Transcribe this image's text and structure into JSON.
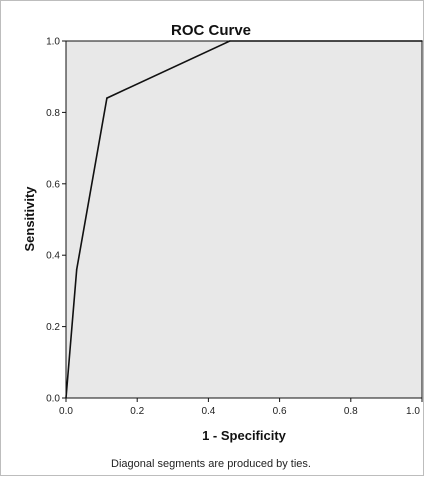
{
  "chart_data": {
    "type": "line",
    "title": "ROC Curve",
    "xlabel": "1 - Specificity",
    "ylabel": "Sensitivity",
    "xlim": [
      0,
      1
    ],
    "ylim": [
      0,
      1
    ],
    "x_ticks": [
      "0.0",
      "0.2",
      "0.4",
      "0.6",
      "0.8",
      "1.0"
    ],
    "y_ticks": [
      "0.0",
      "0.2",
      "0.4",
      "0.6",
      "0.8",
      "1.0"
    ],
    "grid": false,
    "series": [
      {
        "x": [
          0.0,
          0.03,
          0.115,
          0.46,
          1.0
        ],
        "y": [
          0.0,
          0.36,
          0.84,
          1.0,
          1.0
        ]
      }
    ],
    "footnote": "Diagonal segments are produced by ties.",
    "colors": {
      "plot_background": "#e8e8e8",
      "line": "#111111",
      "frame": "#bdbdbd"
    }
  }
}
